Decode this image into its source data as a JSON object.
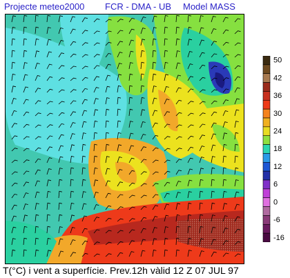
{
  "header": {
    "project": "Projecte meteo2000",
    "institutes": "FCR - DMA - UB",
    "model": "Model  MASS"
  },
  "caption": "T(°C) i vent a superfície. Prev.12h vàlid 12 Z 07 JUL 97",
  "legend": {
    "entries": [
      {
        "label": "50",
        "color": "#3a2a10"
      },
      {
        "label": "",
        "color": "#6e4a20"
      },
      {
        "label": "42",
        "color": "#a87a50"
      },
      {
        "label": "",
        "color": "#9a2a1a"
      },
      {
        "label": "36",
        "color": "#c8301e"
      },
      {
        "label": "",
        "color": "#ee3a18"
      },
      {
        "label": "30",
        "color": "#f5821c"
      },
      {
        "label": "",
        "color": "#f0b020"
      },
      {
        "label": "24",
        "color": "#e8dc22"
      },
      {
        "label": "",
        "color": "#8ee040"
      },
      {
        "label": "18",
        "color": "#2cd6b0"
      },
      {
        "label": "",
        "color": "#2a9ae8"
      },
      {
        "label": "12",
        "color": "#1c56d4"
      },
      {
        "label": "",
        "color": "#2430a8"
      },
      {
        "label": "6",
        "color": "#8030c8"
      },
      {
        "label": "",
        "color": "#c040d8"
      },
      {
        "label": "0",
        "color": "#e070e0"
      },
      {
        "label": "",
        "color": "#b06aa0"
      },
      {
        "label": "-6",
        "color": "#8a3a78"
      },
      {
        "label": "",
        "color": "#6a1a5e"
      },
      {
        "label": "-16",
        "color": "#4a0a42"
      }
    ]
  },
  "colors": {
    "atlantic_cool": "#42c8b0",
    "atlantic_cyan": "#5ee0e2",
    "land_green": "#86e040",
    "land_yellow": "#ece21e",
    "land_orange": "#f2a82a",
    "hot_red": "#ee3a1a",
    "deep_red": "#b8281e",
    "cold_blue": "#2a3ab8",
    "header_text": "#2a22c8"
  }
}
